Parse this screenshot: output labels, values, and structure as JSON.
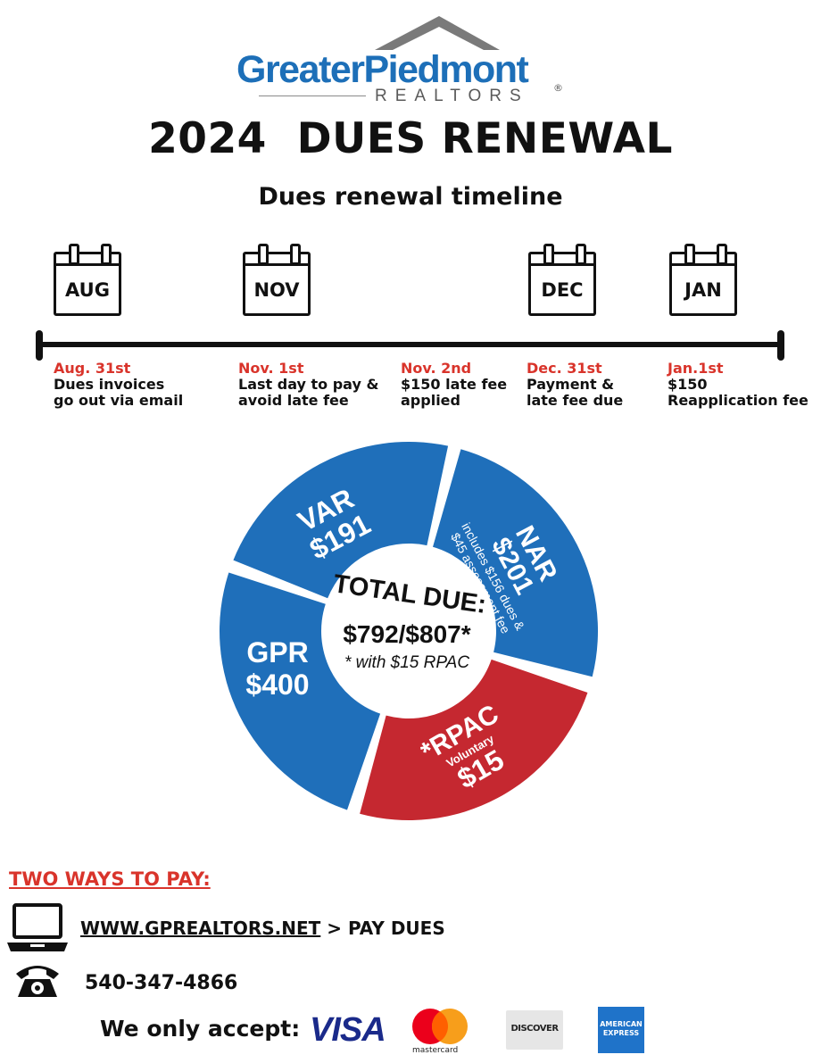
{
  "logo": {
    "name": "GreaterPiedmont",
    "subtitle": "REALTORS",
    "registered": "®"
  },
  "title": "2024  DUES RENEWAL",
  "subtitle": "Dues renewal timeline",
  "calendar_months": [
    "AUG",
    "NOV",
    "DEC",
    "JAN"
  ],
  "events": [
    {
      "date": "Aug. 31st",
      "text": "Dues invoices\ngo out via email"
    },
    {
      "date": "Nov. 1st",
      "text": "Last day to pay &\navoid late fee"
    },
    {
      "date": "Nov. 2nd",
      "text": "$150 late fee\napplied"
    },
    {
      "date": "Dec. 31st",
      "text": "Payment &\nlate fee due"
    },
    {
      "date": "Jan.1st",
      "text": "$150\nReapplication fee"
    }
  ],
  "chart_data": {
    "type": "pie",
    "title": "TOTAL DUE:",
    "total": "$792/$807*",
    "note": "* with $15 RPAC",
    "slices": [
      {
        "name": "VAR",
        "value": 191,
        "label": "$191",
        "color": "#1f6fba"
      },
      {
        "name": "NAR",
        "value": 201,
        "label": "$201",
        "detail": [
          "includes $156 dues &",
          "$45 assessment fee"
        ],
        "color": "#1f6fba"
      },
      {
        "name": "*RPAC",
        "value": 15,
        "label": "$15",
        "detail": [
          "Voluntary"
        ],
        "color": "#c52830"
      },
      {
        "name": "GPR",
        "value": 400,
        "label": "$400",
        "color": "#1f6fba"
      }
    ]
  },
  "pay": {
    "heading": "TWO WAYS TO PAY:",
    "website": "WWW.GPREALTORS.NET",
    "website_suffix": " > PAY DUES",
    "phone": "540-347-4866",
    "accept_label": "We only accept:",
    "cards": {
      "visa": "VISA",
      "mastercard": "mastercard",
      "discover": "DISCOVER",
      "amex_line1": "AMERICAN",
      "amex_line2": "EXPRESS"
    }
  },
  "icons": {
    "laptop": "laptop-icon",
    "phone": "telephone-icon",
    "calendar": "calendar-icon"
  }
}
